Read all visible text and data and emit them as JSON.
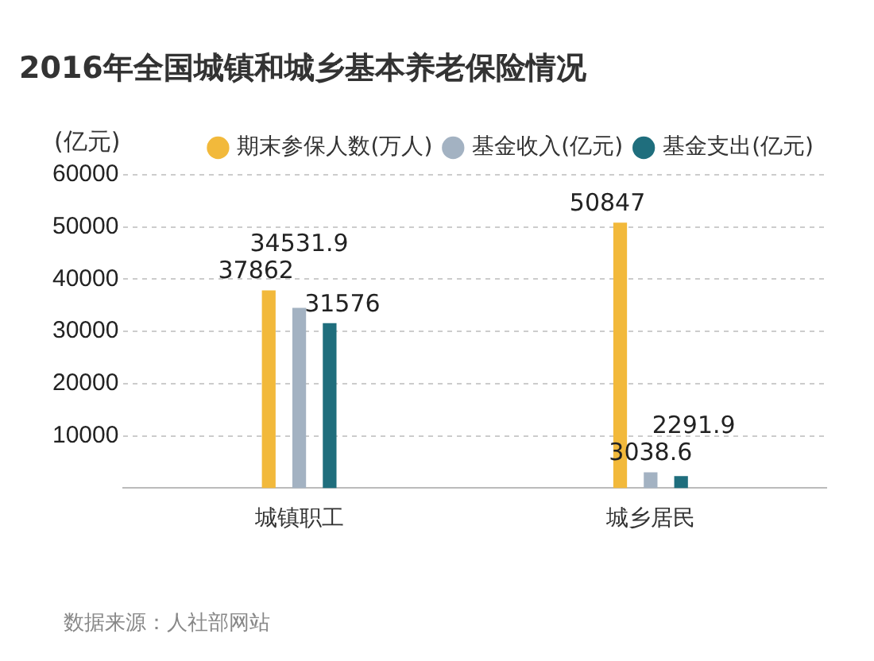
{
  "chart_data": {
    "type": "bar",
    "title": "2016年全国城镇和城乡基本养老保险情况",
    "ylabel": "(亿元)",
    "categories": [
      "城镇职工",
      "城乡居民"
    ],
    "series": [
      {
        "name": "期末参保人数(万人)",
        "color": "#f2b93b",
        "values": [
          37862,
          50847
        ]
      },
      {
        "name": "基金收入(亿元)",
        "color": "#a3b2c2",
        "values": [
          34531.9,
          3038.6
        ]
      },
      {
        "name": "基金支出(亿元)",
        "color": "#1f6e7d",
        "values": [
          31576,
          2291.9
        ]
      }
    ],
    "ylim": [
      0,
      60000
    ],
    "yticks": [
      10000,
      20000,
      30000,
      40000,
      50000,
      60000
    ],
    "grid": "y",
    "legend": "top right",
    "data_labels": true,
    "annotations": [
      "数据来源：人社部网站"
    ]
  }
}
